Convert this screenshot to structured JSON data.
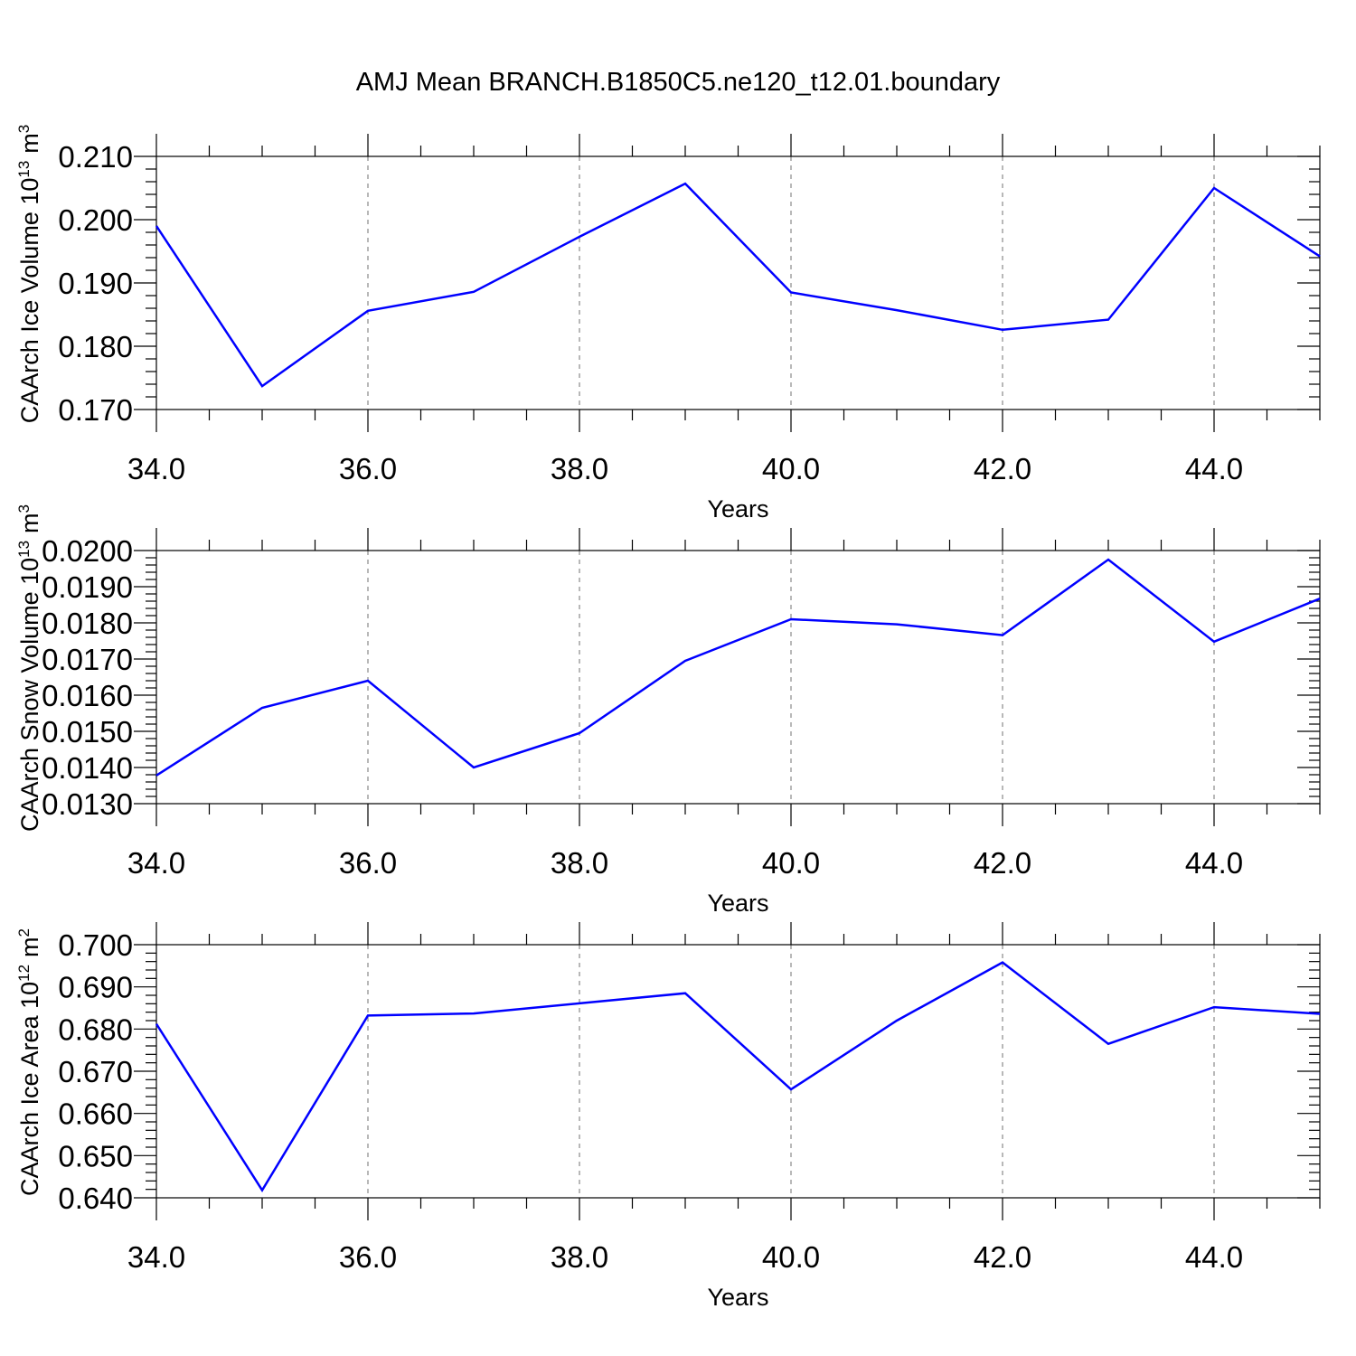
{
  "title": "AMJ Mean BRANCH.B1850C5.ne120_t12.01.boundary",
  "colors": {
    "series": "#0000ff",
    "grid": "#888888",
    "axes": "#000000",
    "background": "#ffffff"
  },
  "chart_data": [
    {
      "type": "line",
      "ylabel": {
        "text": "CAArch Ice Volume 10",
        "exponent": "13",
        "unit": "m",
        "unit_exponent": "3"
      },
      "xlabel": "Years",
      "xlim": [
        34,
        45
      ],
      "ylim": [
        0.17,
        0.21
      ],
      "x_ticks": [
        "34.0",
        "36.0",
        "38.0",
        "40.0",
        "42.0",
        "44.0"
      ],
      "y_ticks": [
        "0.170",
        "0.180",
        "0.190",
        "0.200",
        "0.210"
      ],
      "grid": "vertical dashed at major x ticks",
      "x": [
        34,
        35,
        36,
        37,
        38,
        39,
        40,
        41,
        42,
        43,
        44,
        45
      ],
      "y": [
        0.199,
        0.1737,
        0.1856,
        0.1886,
        0.1973,
        0.2057,
        0.1885,
        0.1857,
        0.1826,
        0.1842,
        0.205,
        0.1942
      ]
    },
    {
      "type": "line",
      "ylabel": {
        "text": "CAArch Snow Volume 10",
        "exponent": "13",
        "unit": "m",
        "unit_exponent": "3"
      },
      "xlabel": "Years",
      "xlim": [
        34,
        45
      ],
      "ylim": [
        0.013,
        0.02
      ],
      "x_ticks": [
        "34.0",
        "36.0",
        "38.0",
        "40.0",
        "42.0",
        "44.0"
      ],
      "y_ticks": [
        "0.0130",
        "0.0140",
        "0.0150",
        "0.0160",
        "0.0170",
        "0.0180",
        "0.0190",
        "0.0200"
      ],
      "grid": "vertical dashed at major x ticks",
      "x": [
        34,
        35,
        36,
        37,
        38,
        39,
        40,
        41,
        42,
        43,
        44,
        45
      ],
      "y": [
        0.01378,
        0.01565,
        0.0164,
        0.014,
        0.01495,
        0.01695,
        0.0181,
        0.01796,
        0.01766,
        0.01975,
        0.01748,
        0.01867
      ]
    },
    {
      "type": "line",
      "ylabel": {
        "text": "CAArch Ice Area 10",
        "exponent": "12",
        "unit": "m",
        "unit_exponent": "2"
      },
      "xlabel": "Years",
      "xlim": [
        34,
        45
      ],
      "ylim": [
        0.64,
        0.7
      ],
      "x_ticks": [
        "34.0",
        "36.0",
        "38.0",
        "40.0",
        "42.0",
        "44.0"
      ],
      "y_ticks": [
        "0.640",
        "0.650",
        "0.660",
        "0.670",
        "0.680",
        "0.690",
        "0.700"
      ],
      "grid": "vertical dashed at major x ticks",
      "x": [
        34,
        35,
        36,
        37,
        38,
        39,
        40,
        41,
        42,
        43,
        44,
        45
      ],
      "y": [
        0.6812,
        0.6418,
        0.6832,
        0.6837,
        0.6861,
        0.6885,
        0.6657,
        0.682,
        0.6958,
        0.6765,
        0.6852,
        0.6836
      ]
    }
  ]
}
